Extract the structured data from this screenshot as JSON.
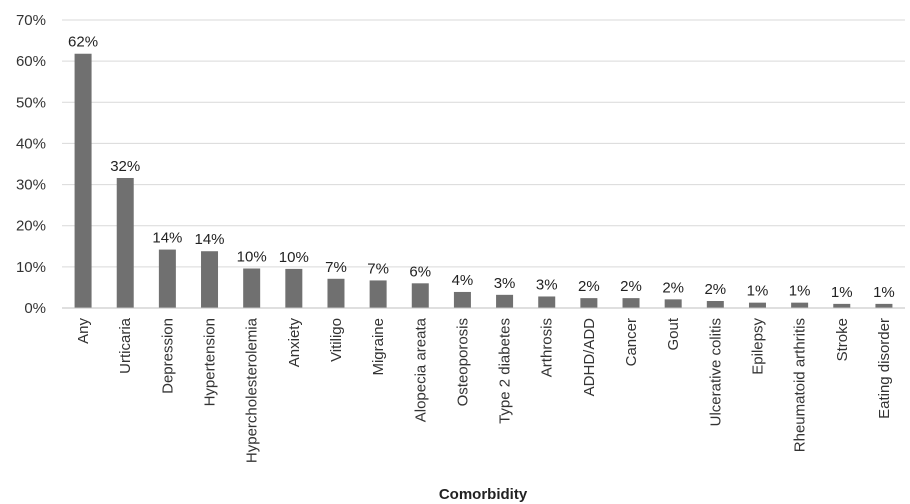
{
  "chart_data": {
    "type": "bar",
    "title": "",
    "xlabel": "Comorbidity",
    "ylabel": "",
    "ylim": [
      0,
      70
    ],
    "yticks": [
      "0%",
      "10%",
      "20%",
      "30%",
      "40%",
      "50%",
      "60%",
      "70%"
    ],
    "grid": true,
    "bar_color": "#707070",
    "categories": [
      "Any",
      "Urticaria",
      "Depression",
      "Hypertension",
      "Hypercholesterolemia",
      "Anxiety",
      "Vitiligo",
      "Migraine",
      "Alopecia areata",
      "Osteoporosis",
      "Type 2 diabetes",
      "Arthrosis",
      "ADHD/ADD",
      "Cancer",
      "Gout",
      "Ulcerative colitis",
      "Epilepsy",
      "Rheumatoid arthritis",
      "Stroke",
      "Eating disorder"
    ],
    "values": [
      61.8,
      31.6,
      14.2,
      13.8,
      9.6,
      9.5,
      7.1,
      6.7,
      6.0,
      3.9,
      3.2,
      2.8,
      2.4,
      2.4,
      2.1,
      1.7,
      1.3,
      1.3,
      1.0,
      1.0
    ],
    "data_labels": [
      "62%",
      "32%",
      "14%",
      "14%",
      "10%",
      "10%",
      "7%",
      "7%",
      "6%",
      "4%",
      "3%",
      "3%",
      "2%",
      "2%",
      "2%",
      "2%",
      "1%",
      "1%",
      "1%",
      "1%"
    ]
  }
}
